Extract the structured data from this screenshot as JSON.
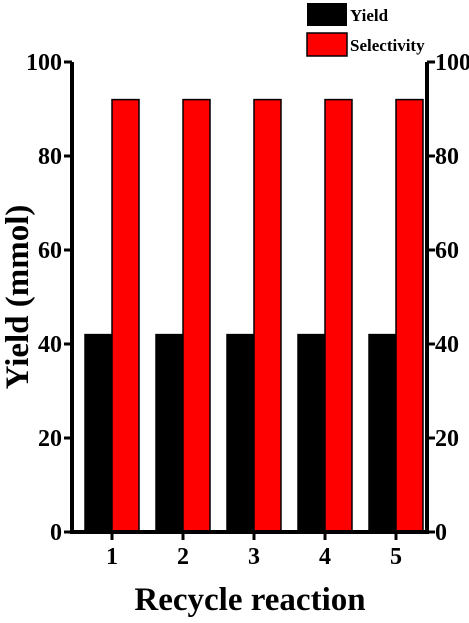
{
  "chart_data": {
    "type": "bar",
    "categories": [
      "1",
      "2",
      "3",
      "4",
      "5"
    ],
    "series": [
      {
        "name": "Yield",
        "values": [
          42,
          42,
          42,
          42,
          42
        ],
        "color": "#000000"
      },
      {
        "name": "Selectivity",
        "values": [
          92,
          92,
          92,
          92,
          92
        ],
        "color": "#ff0000"
      }
    ],
    "xlabel": "Recycle reaction",
    "ylabel": "Yield (mmol)",
    "ylim": [
      0,
      100
    ],
    "yticks": [
      "0",
      "20",
      "40",
      "60",
      "80",
      "100"
    ],
    "right_axis": true,
    "grid": false,
    "legend_position": "top-right"
  }
}
